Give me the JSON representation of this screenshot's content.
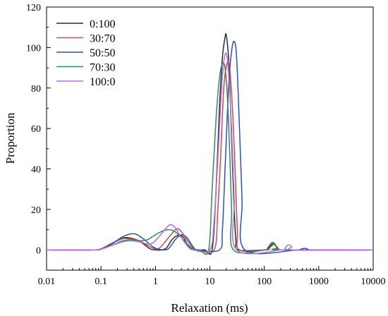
{
  "chart_data": {
    "type": "line",
    "title": "",
    "xlabel": "Relaxation (ms)",
    "ylabel": "Proportion",
    "xscale": "log",
    "xlim": [
      0.01,
      10000
    ],
    "ylim": [
      -10,
      120
    ],
    "x_ticks": [
      0.01,
      0.1,
      1,
      10,
      100,
      1000,
      10000
    ],
    "x_tick_labels": [
      "0.01",
      "0.1",
      "1",
      "10",
      "100",
      "1000",
      "10000"
    ],
    "y_ticks": [
      0,
      20,
      40,
      60,
      80,
      100,
      120
    ],
    "y_tick_labels": [
      "0",
      "20",
      "40",
      "60",
      "80",
      "100",
      "120"
    ],
    "grid": false,
    "legend_position": "top-left",
    "series": [
      {
        "name": "0:100",
        "color": "#2b2b2b",
        "points": [
          [
            0.01,
            0
          ],
          [
            0.07,
            0
          ],
          [
            0.1,
            0.5
          ],
          [
            0.15,
            3
          ],
          [
            0.25,
            5.8
          ],
          [
            0.32,
            6
          ],
          [
            0.45,
            5
          ],
          [
            0.6,
            3
          ],
          [
            0.8,
            0.5
          ],
          [
            1.0,
            0
          ],
          [
            1.3,
            0
          ],
          [
            1.6,
            1
          ],
          [
            2.0,
            5
          ],
          [
            2.5,
            7
          ],
          [
            3.2,
            6.5
          ],
          [
            4.0,
            2
          ],
          [
            5.0,
            0
          ],
          [
            8.0,
            0
          ],
          [
            11,
            0
          ],
          [
            13,
            30
          ],
          [
            15,
            70
          ],
          [
            17,
            95
          ],
          [
            19,
            105
          ],
          [
            20,
            106
          ],
          [
            22,
            95
          ],
          [
            24,
            70
          ],
          [
            27,
            30
          ],
          [
            30,
            5
          ],
          [
            33,
            0
          ],
          [
            100,
            0
          ],
          [
            120,
            1
          ],
          [
            140,
            3
          ],
          [
            155,
            3
          ],
          [
            175,
            1
          ],
          [
            200,
            0
          ],
          [
            10000,
            0
          ]
        ]
      },
      {
        "name": "30:70",
        "color": "#c0504d",
        "points": [
          [
            0.01,
            0
          ],
          [
            0.07,
            0
          ],
          [
            0.1,
            0.5
          ],
          [
            0.15,
            3
          ],
          [
            0.25,
            5.5
          ],
          [
            0.33,
            5.5
          ],
          [
            0.45,
            5
          ],
          [
            0.6,
            3.5
          ],
          [
            0.8,
            1.5
          ],
          [
            1.0,
            0.5
          ],
          [
            1.2,
            1
          ],
          [
            1.5,
            4
          ],
          [
            2.0,
            8
          ],
          [
            2.5,
            10.5
          ],
          [
            3.0,
            9
          ],
          [
            4.0,
            4
          ],
          [
            5.0,
            1
          ],
          [
            6.0,
            0
          ],
          [
            12,
            0
          ],
          [
            14,
            20
          ],
          [
            16,
            50
          ],
          [
            18,
            80
          ],
          [
            21,
            93
          ],
          [
            23,
            90
          ],
          [
            26,
            70
          ],
          [
            29,
            40
          ],
          [
            32,
            10
          ],
          [
            35,
            0
          ],
          [
            110,
            0
          ],
          [
            125,
            1
          ],
          [
            145,
            2.5
          ],
          [
            165,
            2
          ],
          [
            185,
            0.5
          ],
          [
            210,
            0
          ],
          [
            10000,
            0
          ]
        ]
      },
      {
        "name": "50:50",
        "color": "#2f4fbd",
        "points": [
          [
            0.01,
            0
          ],
          [
            0.07,
            0
          ],
          [
            0.1,
            0.5
          ],
          [
            0.15,
            2.5
          ],
          [
            0.25,
            6.5
          ],
          [
            0.38,
            8
          ],
          [
            0.5,
            7
          ],
          [
            0.7,
            4
          ],
          [
            0.9,
            1.5
          ],
          [
            1.1,
            0.5
          ],
          [
            1.5,
            0
          ],
          [
            1.8,
            1
          ],
          [
            2.3,
            5
          ],
          [
            3.0,
            7.5
          ],
          [
            3.8,
            6
          ],
          [
            4.8,
            2
          ],
          [
            6.0,
            0
          ],
          [
            15,
            0
          ],
          [
            17,
            10
          ],
          [
            19,
            40
          ],
          [
            22,
            80
          ],
          [
            25,
            98
          ],
          [
            28,
            103
          ],
          [
            31,
            95
          ],
          [
            35,
            60
          ],
          [
            39,
            25
          ],
          [
            44,
            0
          ],
          [
            400,
            0
          ],
          [
            460,
            0.3
          ],
          [
            550,
            0.8
          ],
          [
            640,
            0.3
          ],
          [
            750,
            0
          ],
          [
            10000,
            0
          ]
        ]
      },
      {
        "name": "70:30",
        "color": "#2e8b57",
        "points": [
          [
            0.01,
            0
          ],
          [
            0.07,
            0
          ],
          [
            0.1,
            0.5
          ],
          [
            0.15,
            2
          ],
          [
            0.25,
            4.5
          ],
          [
            0.35,
            5
          ],
          [
            0.5,
            4.5
          ],
          [
            0.7,
            5
          ],
          [
            1.0,
            7.5
          ],
          [
            1.4,
            9.5
          ],
          [
            1.8,
            10
          ],
          [
            2.3,
            9
          ],
          [
            3.0,
            6
          ],
          [
            4.0,
            2.5
          ],
          [
            5.0,
            0.5
          ],
          [
            6.5,
            0
          ],
          [
            9.5,
            0
          ],
          [
            11,
            30
          ],
          [
            13,
            65
          ],
          [
            15,
            85
          ],
          [
            17,
            92
          ],
          [
            19,
            90
          ],
          [
            21,
            75
          ],
          [
            23,
            50
          ],
          [
            25,
            20
          ],
          [
            27,
            0
          ],
          [
            100,
            0
          ],
          [
            115,
            1
          ],
          [
            135,
            3.5
          ],
          [
            150,
            3.5
          ],
          [
            170,
            1
          ],
          [
            190,
            0
          ],
          [
            10000,
            0
          ]
        ]
      },
      {
        "name": "100:0",
        "color": "#b56be0",
        "points": [
          [
            0.01,
            0
          ],
          [
            0.07,
            0
          ],
          [
            0.1,
            0.3
          ],
          [
            0.15,
            2
          ],
          [
            0.25,
            4
          ],
          [
            0.35,
            4.5
          ],
          [
            0.5,
            4
          ],
          [
            0.7,
            3
          ],
          [
            0.9,
            3.5
          ],
          [
            1.2,
            7
          ],
          [
            1.6,
            11
          ],
          [
            1.9,
            12.5
          ],
          [
            2.3,
            11
          ],
          [
            3.0,
            6
          ],
          [
            4.0,
            1.5
          ],
          [
            5.0,
            0
          ],
          [
            10,
            0
          ],
          [
            12,
            15
          ],
          [
            14,
            45
          ],
          [
            16,
            75
          ],
          [
            18,
            93
          ],
          [
            20,
            97
          ],
          [
            22,
            88
          ],
          [
            25,
            60
          ],
          [
            28,
            25
          ],
          [
            31,
            0
          ],
          [
            210,
            0
          ],
          [
            240,
            1
          ],
          [
            280,
            2.5
          ],
          [
            320,
            1.5
          ],
          [
            370,
            0
          ],
          [
            10000,
            0
          ]
        ]
      }
    ]
  }
}
